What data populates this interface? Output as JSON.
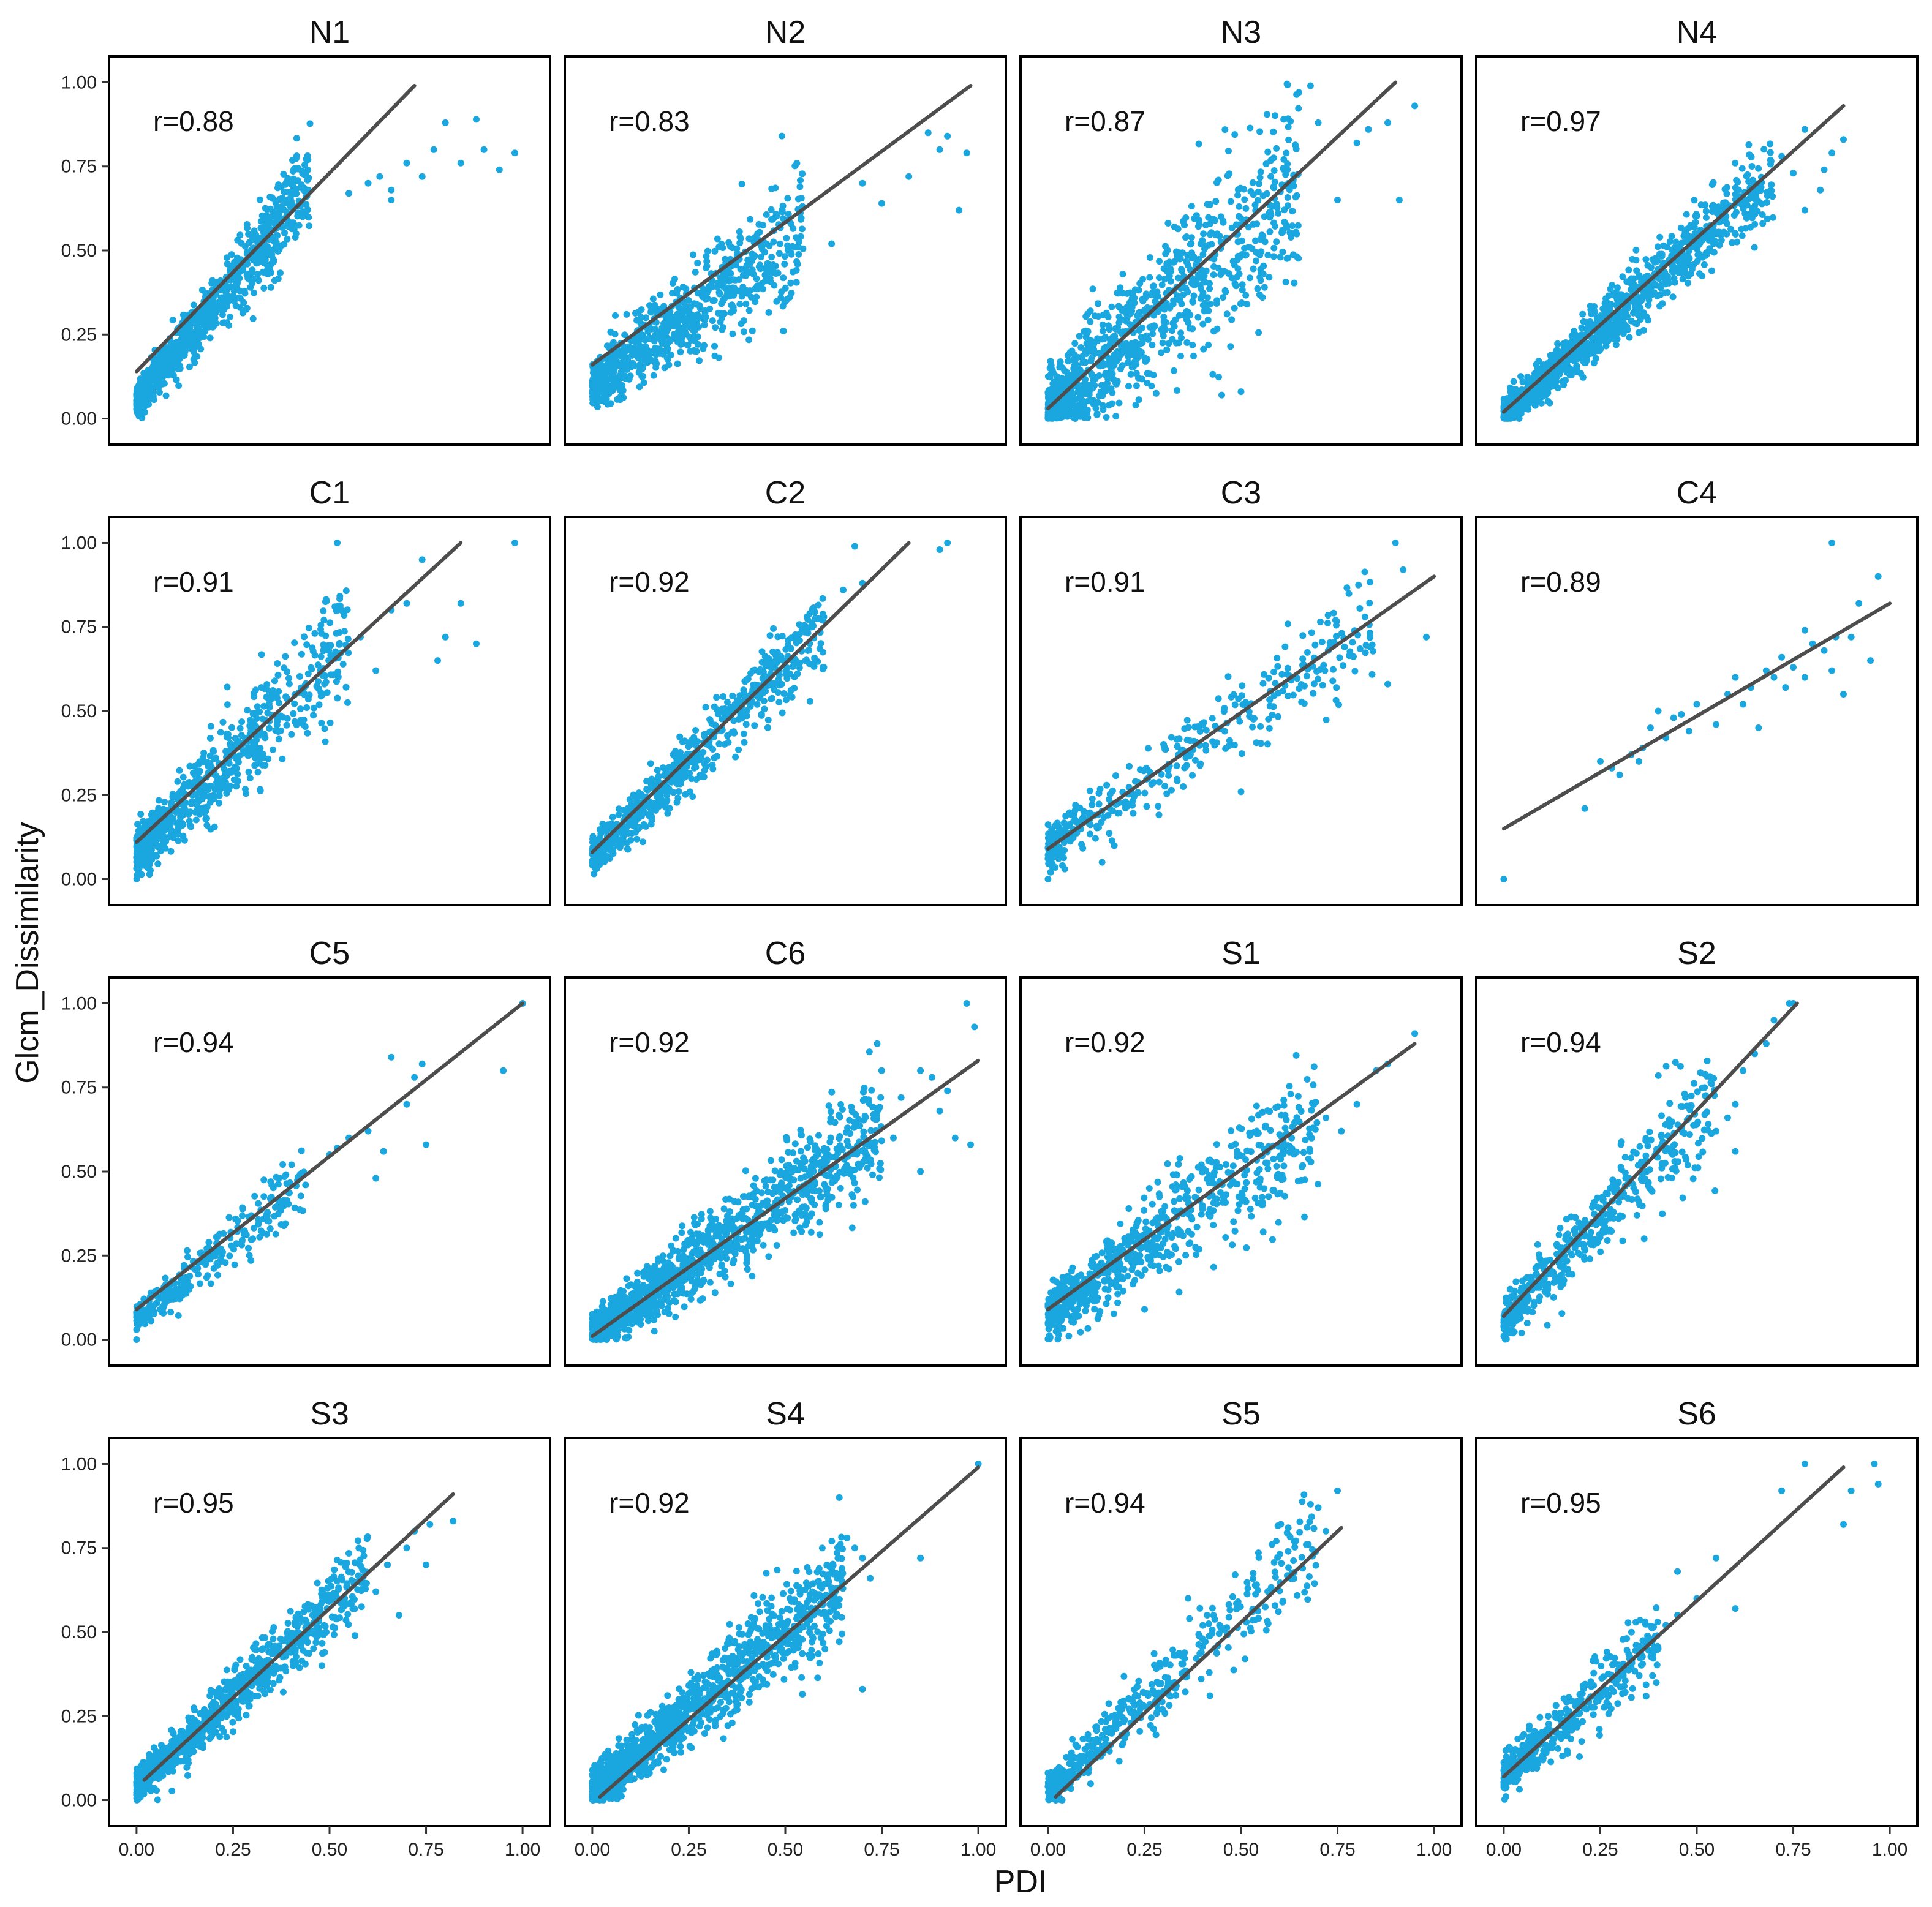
{
  "figure": {
    "xlabel": "PDI",
    "ylabel": "Glcm_Dissimilarity"
  },
  "colors": {
    "points": "#1aa7e0",
    "fit_line": "#4d4d4d",
    "frame": "#000000"
  },
  "chart_data": [
    {
      "type": "scatter",
      "title": "N1",
      "r_label": "r=0.88",
      "fit": [
        [
          0.0,
          0.14
        ],
        [
          0.72,
          0.99
        ]
      ],
      "cluster": {
        "n": 900,
        "xmax": 0.45,
        "slope": 1.45,
        "icpt": 0.05,
        "spread": 0.05
      },
      "tail": [
        [
          0.55,
          0.67
        ],
        [
          0.6,
          0.7
        ],
        [
          0.63,
          0.72
        ],
        [
          0.66,
          0.68
        ],
        [
          0.7,
          0.76
        ],
        [
          0.74,
          0.72
        ],
        [
          0.77,
          0.8
        ],
        [
          0.8,
          0.88
        ],
        [
          0.84,
          0.76
        ],
        [
          0.88,
          0.89
        ],
        [
          0.9,
          0.8
        ],
        [
          0.94,
          0.74
        ],
        [
          0.98,
          0.79
        ],
        [
          0.66,
          0.65
        ]
      ],
      "xlim": [
        -0.03,
        1.03
      ],
      "ylim": [
        -0.03,
        1.03
      ]
    },
    {
      "type": "scatter",
      "title": "N2",
      "r_label": "r=0.83",
      "fit": [
        [
          0.0,
          0.16
        ],
        [
          0.98,
          0.99
        ]
      ],
      "cluster": {
        "n": 800,
        "xmax": 0.55,
        "slope": 0.85,
        "icpt": 0.1,
        "spread": 0.07
      },
      "tail": [
        [
          0.7,
          0.7
        ],
        [
          0.75,
          0.64
        ],
        [
          0.82,
          0.72
        ],
        [
          0.87,
          0.85
        ],
        [
          0.9,
          0.8
        ],
        [
          0.92,
          0.84
        ],
        [
          0.97,
          0.79
        ],
        [
          0.95,
          0.62
        ],
        [
          0.62,
          0.52
        ]
      ],
      "xlim": [
        -0.03,
        1.03
      ],
      "ylim": [
        -0.03,
        1.03
      ]
    },
    {
      "type": "scatter",
      "title": "N3",
      "r_label": "r=0.87",
      "fit": [
        [
          0.0,
          0.03
        ],
        [
          0.9,
          1.0
        ]
      ],
      "cluster": {
        "n": 1000,
        "xmax": 0.65,
        "slope": 1.05,
        "icpt": 0.02,
        "spread": 0.11
      },
      "tail": [
        [
          0.7,
          0.88
        ],
        [
          0.75,
          0.65
        ],
        [
          0.8,
          0.82
        ],
        [
          0.83,
          0.86
        ],
        [
          0.88,
          0.88
        ],
        [
          0.91,
          0.65
        ],
        [
          0.95,
          0.93
        ],
        [
          0.65,
          0.97
        ],
        [
          0.68,
          0.99
        ],
        [
          0.45,
          0.07
        ],
        [
          0.5,
          0.08
        ]
      ],
      "xlim": [
        -0.03,
        1.03
      ],
      "ylim": [
        -0.03,
        1.03
      ]
    },
    {
      "type": "scatter",
      "title": "N4",
      "r_label": "r=0.97",
      "fit": [
        [
          0.0,
          0.02
        ],
        [
          0.88,
          0.93
        ]
      ],
      "cluster": {
        "n": 1100,
        "xmax": 0.7,
        "slope": 1.02,
        "icpt": 0.01,
        "spread": 0.045
      },
      "tail": [
        [
          0.72,
          0.78
        ],
        [
          0.78,
          0.86
        ],
        [
          0.82,
          0.68
        ],
        [
          0.85,
          0.79
        ],
        [
          0.88,
          0.83
        ],
        [
          0.75,
          0.73
        ],
        [
          0.78,
          0.62
        ],
        [
          0.83,
          0.74
        ]
      ],
      "xlim": [
        -0.03,
        1.03
      ],
      "ylim": [
        -0.03,
        1.03
      ]
    },
    {
      "type": "scatter",
      "title": "C1",
      "r_label": "r=0.91",
      "fit": [
        [
          0.0,
          0.11
        ],
        [
          0.84,
          1.0
        ]
      ],
      "cluster": {
        "n": 650,
        "xmax": 0.55,
        "slope": 1.15,
        "icpt": 0.08,
        "spread": 0.07
      },
      "tail": [
        [
          0.58,
          0.72
        ],
        [
          0.62,
          0.62
        ],
        [
          0.66,
          0.8
        ],
        [
          0.7,
          0.82
        ],
        [
          0.74,
          0.95
        ],
        [
          0.78,
          0.65
        ],
        [
          0.8,
          0.72
        ],
        [
          0.84,
          0.82
        ],
        [
          0.88,
          0.7
        ],
        [
          0.98,
          1.0
        ],
        [
          0.52,
          1.0
        ]
      ],
      "xlim": [
        -0.03,
        1.03
      ],
      "ylim": [
        -0.03,
        1.03
      ]
    },
    {
      "type": "scatter",
      "title": "C2",
      "r_label": "r=0.92",
      "fit": [
        [
          0.0,
          0.08
        ],
        [
          0.82,
          1.0
        ]
      ],
      "cluster": {
        "n": 650,
        "xmax": 0.6,
        "slope": 1.15,
        "icpt": 0.06,
        "spread": 0.05
      },
      "tail": [
        [
          0.6,
          0.78
        ],
        [
          0.65,
          0.86
        ],
        [
          0.7,
          0.88
        ],
        [
          0.68,
          0.99
        ],
        [
          0.92,
          1.0
        ],
        [
          0.9,
          0.98
        ],
        [
          0.6,
          0.63
        ]
      ],
      "xlim": [
        -0.03,
        1.03
      ],
      "ylim": [
        -0.03,
        1.03
      ]
    },
    {
      "type": "scatter",
      "title": "C3",
      "r_label": "r=0.91",
      "fit": [
        [
          0.0,
          0.09
        ],
        [
          1.0,
          0.9
        ]
      ],
      "cluster": {
        "n": 380,
        "xmax": 0.85,
        "slope": 0.8,
        "icpt": 0.09,
        "spread": 0.06
      },
      "tail": [
        [
          0.9,
          1.0
        ],
        [
          0.92,
          0.92
        ],
        [
          0.98,
          0.72
        ],
        [
          0.88,
          0.58
        ],
        [
          0.5,
          0.26
        ],
        [
          0.14,
          0.05
        ],
        [
          0.0,
          0.0
        ]
      ],
      "xlim": [
        -0.03,
        1.03
      ],
      "ylim": [
        -0.03,
        1.03
      ]
    },
    {
      "type": "scatter",
      "title": "C4",
      "r_label": "r=0.89",
      "fit": [
        [
          0.0,
          0.15
        ],
        [
          1.0,
          0.82
        ]
      ],
      "cluster": {
        "n": 0,
        "xmax": 0,
        "slope": 0,
        "icpt": 0,
        "spread": 0
      },
      "tail": [
        [
          0.0,
          0.0
        ],
        [
          0.21,
          0.21
        ],
        [
          0.25,
          0.35
        ],
        [
          0.28,
          0.33
        ],
        [
          0.3,
          0.31
        ],
        [
          0.33,
          0.37
        ],
        [
          0.35,
          0.35
        ],
        [
          0.38,
          0.45
        ],
        [
          0.4,
          0.5
        ],
        [
          0.44,
          0.48
        ],
        [
          0.46,
          0.49
        ],
        [
          0.5,
          0.52
        ],
        [
          0.55,
          0.46
        ],
        [
          0.58,
          0.55
        ],
        [
          0.62,
          0.52
        ],
        [
          0.64,
          0.57
        ],
        [
          0.66,
          0.45
        ],
        [
          0.68,
          0.62
        ],
        [
          0.7,
          0.6
        ],
        [
          0.72,
          0.66
        ],
        [
          0.75,
          0.63
        ],
        [
          0.78,
          0.6
        ],
        [
          0.8,
          0.7
        ],
        [
          0.83,
          0.68
        ],
        [
          0.85,
          0.62
        ],
        [
          0.86,
          0.72
        ],
        [
          0.88,
          0.55
        ],
        [
          0.9,
          0.72
        ],
        [
          0.92,
          0.82
        ],
        [
          0.95,
          0.65
        ],
        [
          0.97,
          0.9
        ],
        [
          0.85,
          1.0
        ],
        [
          0.78,
          0.74
        ],
        [
          0.73,
          0.57
        ],
        [
          0.6,
          0.6
        ],
        [
          0.48,
          0.44
        ],
        [
          0.42,
          0.42
        ],
        [
          0.36,
          0.39
        ]
      ],
      "xlim": [
        -0.03,
        1.03
      ],
      "ylim": [
        -0.03,
        1.03
      ]
    },
    {
      "type": "scatter",
      "title": "C5",
      "r_label": "r=0.94",
      "fit": [
        [
          0.0,
          0.09
        ],
        [
          1.0,
          1.0
        ]
      ],
      "cluster": {
        "n": 280,
        "xmax": 0.45,
        "slope": 0.95,
        "icpt": 0.06,
        "spread": 0.04
      },
      "tail": [
        [
          0.5,
          0.55
        ],
        [
          0.52,
          0.57
        ],
        [
          0.55,
          0.6
        ],
        [
          0.6,
          0.62
        ],
        [
          0.62,
          0.48
        ],
        [
          0.64,
          0.56
        ],
        [
          0.66,
          0.84
        ],
        [
          0.7,
          0.7
        ],
        [
          0.72,
          0.78
        ],
        [
          0.74,
          0.82
        ],
        [
          0.75,
          0.58
        ],
        [
          0.95,
          0.8
        ],
        [
          1.0,
          1.0
        ],
        [
          0.0,
          0.0
        ]
      ],
      "xlim": [
        -0.03,
        1.03
      ],
      "ylim": [
        -0.03,
        1.03
      ]
    },
    {
      "type": "scatter",
      "title": "C6",
      "r_label": "r=0.92",
      "fit": [
        [
          0.0,
          0.01
        ],
        [
          1.0,
          0.83
        ]
      ],
      "cluster": {
        "n": 1200,
        "xmax": 0.75,
        "slope": 0.83,
        "icpt": 0.01,
        "spread": 0.06
      },
      "tail": [
        [
          0.78,
          0.6
        ],
        [
          0.8,
          0.72
        ],
        [
          0.85,
          0.5
        ],
        [
          0.88,
          0.78
        ],
        [
          0.9,
          0.68
        ],
        [
          0.92,
          0.74
        ],
        [
          0.94,
          0.6
        ],
        [
          0.97,
          1.0
        ],
        [
          0.99,
          0.93
        ],
        [
          0.98,
          0.58
        ],
        [
          0.85,
          0.8
        ]
      ],
      "xlim": [
        -0.03,
        1.03
      ],
      "ylim": [
        -0.03,
        1.03
      ]
    },
    {
      "type": "scatter",
      "title": "S1",
      "r_label": "r=0.92",
      "fit": [
        [
          0.0,
          0.09
        ],
        [
          0.95,
          0.88
        ]
      ],
      "cluster": {
        "n": 750,
        "xmax": 0.7,
        "slope": 0.85,
        "icpt": 0.07,
        "spread": 0.07
      },
      "tail": [
        [
          0.72,
          0.66
        ],
        [
          0.76,
          0.62
        ],
        [
          0.8,
          0.7
        ],
        [
          0.85,
          0.8
        ],
        [
          0.88,
          0.82
        ],
        [
          0.95,
          0.91
        ],
        [
          0.25,
          0.09
        ]
      ],
      "xlim": [
        -0.03,
        1.03
      ],
      "ylim": [
        -0.03,
        1.03
      ]
    },
    {
      "type": "scatter",
      "title": "S2",
      "r_label": "r=0.94",
      "fit": [
        [
          0.0,
          0.07
        ],
        [
          0.76,
          1.0
        ]
      ],
      "cluster": {
        "n": 500,
        "xmax": 0.55,
        "slope": 1.22,
        "icpt": 0.05,
        "spread": 0.06
      },
      "tail": [
        [
          0.58,
          0.66
        ],
        [
          0.6,
          0.7
        ],
        [
          0.62,
          0.8
        ],
        [
          0.65,
          0.85
        ],
        [
          0.68,
          0.88
        ],
        [
          0.7,
          0.95
        ],
        [
          0.74,
          1.0
        ],
        [
          0.75,
          1.0
        ],
        [
          0.55,
          0.62
        ],
        [
          0.6,
          0.56
        ]
      ],
      "xlim": [
        -0.03,
        1.03
      ],
      "ylim": [
        -0.03,
        1.03
      ]
    },
    {
      "type": "scatter",
      "title": "S3",
      "r_label": "r=0.95",
      "fit": [
        [
          0.02,
          0.06
        ],
        [
          0.82,
          0.91
        ]
      ],
      "cluster": {
        "n": 900,
        "xmax": 0.6,
        "slope": 1.06,
        "icpt": 0.04,
        "spread": 0.045
      },
      "tail": [
        [
          0.62,
          0.62
        ],
        [
          0.65,
          0.7
        ],
        [
          0.68,
          0.55
        ],
        [
          0.7,
          0.75
        ],
        [
          0.72,
          0.8
        ],
        [
          0.76,
          0.82
        ],
        [
          0.82,
          0.83
        ],
        [
          0.75,
          0.7
        ]
      ],
      "xlim": [
        -0.03,
        1.03
      ],
      "ylim": [
        -0.03,
        1.03
      ]
    },
    {
      "type": "scatter",
      "title": "S4",
      "r_label": "r=0.92",
      "fit": [
        [
          0.02,
          0.01
        ],
        [
          1.0,
          0.99
        ]
      ],
      "cluster": {
        "n": 1200,
        "xmax": 0.65,
        "slope": 0.98,
        "icpt": 0.02,
        "spread": 0.06
      },
      "tail": [
        [
          0.66,
          0.78
        ],
        [
          0.68,
          0.75
        ],
        [
          0.7,
          0.72
        ],
        [
          0.72,
          0.66
        ],
        [
          0.85,
          0.72
        ],
        [
          1.0,
          1.0
        ],
        [
          0.7,
          0.33
        ],
        [
          0.64,
          0.9
        ]
      ],
      "xlim": [
        -0.03,
        1.03
      ],
      "ylim": [
        -0.03,
        1.03
      ]
    },
    {
      "type": "scatter",
      "title": "S5",
      "r_label": "r=0.94",
      "fit": [
        [
          0.02,
          0.01
        ],
        [
          0.76,
          0.81
        ]
      ],
      "cluster": {
        "n": 450,
        "xmax": 0.7,
        "slope": 1.05,
        "icpt": 0.03,
        "spread": 0.06
      },
      "tail": [
        [
          0.68,
          0.88
        ],
        [
          0.7,
          0.87
        ],
        [
          0.75,
          0.92
        ],
        [
          0.72,
          0.8
        ],
        [
          0.02,
          0.0
        ]
      ],
      "xlim": [
        -0.03,
        1.03
      ],
      "ylim": [
        -0.03,
        1.03
      ]
    },
    {
      "type": "scatter",
      "title": "S6",
      "r_label": "r=0.95",
      "fit": [
        [
          0.0,
          0.07
        ],
        [
          0.88,
          0.99
        ]
      ],
      "cluster": {
        "n": 420,
        "xmax": 0.4,
        "slope": 1.04,
        "icpt": 0.07,
        "spread": 0.05
      },
      "tail": [
        [
          0.4,
          0.45
        ],
        [
          0.42,
          0.52
        ],
        [
          0.45,
          0.55
        ],
        [
          0.5,
          0.6
        ],
        [
          0.55,
          0.72
        ],
        [
          0.6,
          0.57
        ],
        [
          0.72,
          0.92
        ],
        [
          0.78,
          1.0
        ],
        [
          0.88,
          0.82
        ],
        [
          0.9,
          0.92
        ],
        [
          0.96,
          1.0
        ],
        [
          0.97,
          0.94
        ],
        [
          0.45,
          0.68
        ]
      ],
      "xlim": [
        -0.03,
        1.03
      ],
      "ylim": [
        -0.03,
        1.03
      ]
    }
  ],
  "ticks": {
    "values": [
      0.0,
      0.25,
      0.5,
      0.75,
      1.0
    ],
    "labels": [
      "0.00",
      "0.25",
      "0.50",
      "0.75",
      "1.00"
    ]
  }
}
